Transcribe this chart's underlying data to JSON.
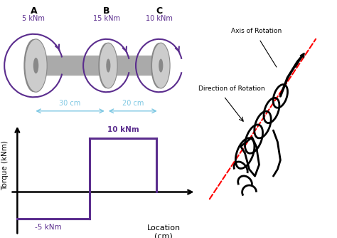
{
  "background_color": "#ffffff",
  "purple_color": "#5b2d8e",
  "gray_shaft": "#aaaaaa",
  "gray_disk_outer": "#888888",
  "gray_disk_inner": "#cccccc",
  "blue_dim": "#7ec8e3",
  "black": "#000000",
  "red_dashed": "#ff0000",
  "label_A": "A",
  "label_B": "B",
  "label_C": "C",
  "torque_A": "5 kNm",
  "torque_B": "15 kNm",
  "torque_C": "10 kNm",
  "dist_AB": "30 cm",
  "dist_BC": "20 cm",
  "diagram_label_pos": "10 kNm",
  "diagram_label_neg": "-5 kNm",
  "ylabel": "Torque (kNm)",
  "xlabel_line1": "Location",
  "xlabel_line2": "(cm)",
  "axis_rotation_label": "Axis of Rotation",
  "direction_rotation_label": "Direction of Rotation"
}
